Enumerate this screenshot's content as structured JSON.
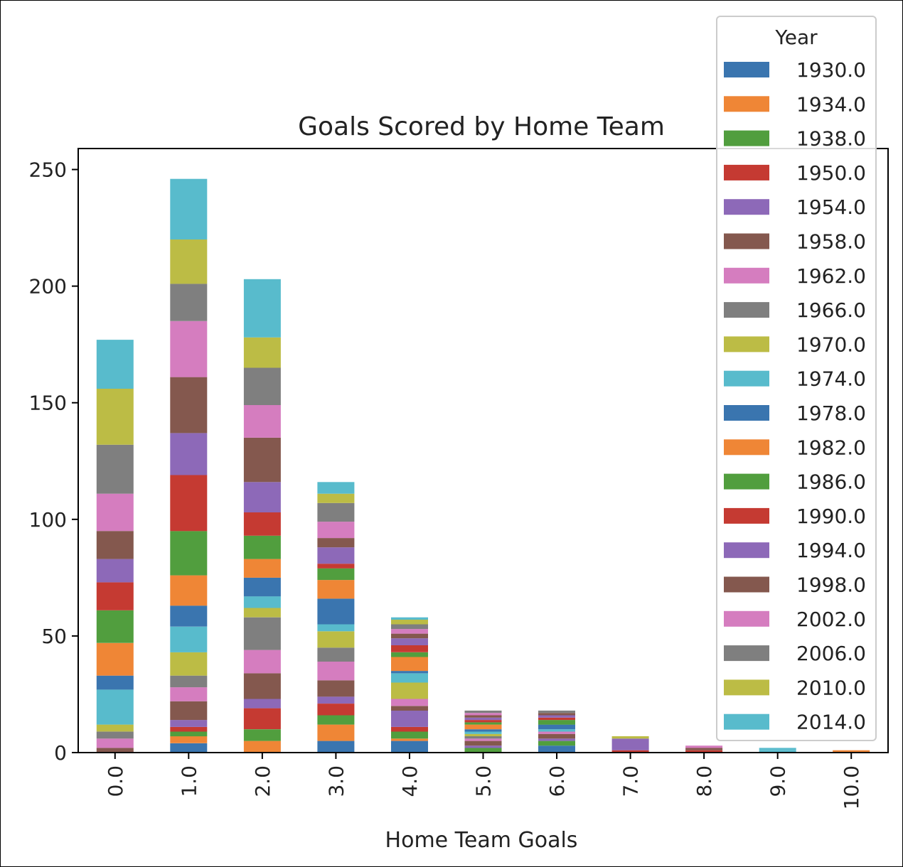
{
  "chart_data": {
    "type": "bar",
    "stacked": true,
    "title": "Goals Scored by Home Team",
    "xlabel": "Home Team Goals",
    "ylabel": "",
    "ylim": [
      0,
      259
    ],
    "yticks": [
      0,
      50,
      100,
      150,
      200,
      250
    ],
    "categories": [
      "0.0",
      "1.0",
      "2.0",
      "3.0",
      "4.0",
      "5.0",
      "6.0",
      "7.0",
      "8.0",
      "9.0",
      "10.0"
    ],
    "legend": {
      "title": "Year",
      "placement": "top-right"
    },
    "series": [
      {
        "name": "1930.0",
        "color": "#3a75af",
        "values": [
          0,
          4,
          0,
          5,
          5,
          0,
          3,
          0,
          0,
          0,
          0
        ]
      },
      {
        "name": "1934.0",
        "color": "#ef8636",
        "values": [
          0,
          3,
          5,
          7,
          1,
          0,
          0,
          0,
          0,
          0,
          1
        ]
      },
      {
        "name": "1938.0",
        "color": "#519e3e",
        "values": [
          0,
          2,
          5,
          4,
          3,
          2,
          2,
          0,
          0,
          0,
          0
        ]
      },
      {
        "name": "1950.0",
        "color": "#c53a32",
        "values": [
          0,
          2,
          9,
          5,
          2,
          0,
          0,
          1,
          1,
          0,
          0
        ]
      },
      {
        "name": "1954.0",
        "color": "#8d69b8",
        "values": [
          0,
          3,
          4,
          3,
          7,
          1,
          1,
          5,
          0,
          0,
          0
        ]
      },
      {
        "name": "1958.0",
        "color": "#84584e",
        "values": [
          2,
          8,
          11,
          7,
          2,
          2,
          2,
          0,
          1,
          0,
          0
        ]
      },
      {
        "name": "1962.0",
        "color": "#d57dbf",
        "values": [
          4,
          6,
          10,
          8,
          3,
          1,
          1,
          0,
          1,
          0,
          0
        ]
      },
      {
        "name": "1966.0",
        "color": "#7f7f7f",
        "values": [
          3,
          5,
          14,
          6,
          0,
          1,
          0,
          0,
          0,
          0,
          0
        ]
      },
      {
        "name": "1970.0",
        "color": "#bcbc45",
        "values": [
          3,
          10,
          4,
          7,
          7,
          1,
          0,
          0,
          0,
          0,
          0
        ]
      },
      {
        "name": "1974.0",
        "color": "#58bbcc",
        "values": [
          15,
          11,
          5,
          3,
          4,
          1,
          1,
          0,
          0,
          1,
          0
        ]
      },
      {
        "name": "1978.0",
        "color": "#3a75af",
        "values": [
          6,
          9,
          8,
          11,
          1,
          1,
          2,
          0,
          0,
          0,
          0
        ]
      },
      {
        "name": "1982.0",
        "color": "#ef8636",
        "values": [
          14,
          13,
          8,
          8,
          6,
          2,
          0,
          0,
          0,
          0,
          0
        ]
      },
      {
        "name": "1986.0",
        "color": "#519e3e",
        "values": [
          14,
          19,
          10,
          5,
          2,
          1,
          2,
          0,
          0,
          0,
          0
        ]
      },
      {
        "name": "1990.0",
        "color": "#c53a32",
        "values": [
          12,
          24,
          10,
          2,
          3,
          1,
          1,
          0,
          0,
          0,
          0
        ]
      },
      {
        "name": "1994.0",
        "color": "#8d69b8",
        "values": [
          10,
          18,
          13,
          7,
          3,
          1,
          1,
          0,
          0,
          0,
          0
        ]
      },
      {
        "name": "1998.0",
        "color": "#84584e",
        "values": [
          12,
          24,
          19,
          4,
          2,
          1,
          1,
          0,
          0,
          0,
          0
        ]
      },
      {
        "name": "2002.0",
        "color": "#d57dbf",
        "values": [
          16,
          24,
          14,
          7,
          2,
          1,
          0,
          0,
          0,
          0,
          0
        ]
      },
      {
        "name": "2006.0",
        "color": "#7f7f7f",
        "values": [
          21,
          16,
          16,
          8,
          2,
          1,
          1,
          0,
          0,
          0,
          0
        ]
      },
      {
        "name": "2010.0",
        "color": "#bcbc45",
        "values": [
          24,
          19,
          13,
          4,
          2,
          0,
          0,
          1,
          0,
          0,
          0
        ]
      },
      {
        "name": "2014.0",
        "color": "#58bbcc",
        "values": [
          21,
          26,
          25,
          5,
          1,
          0,
          0,
          0,
          0,
          1,
          0
        ]
      }
    ]
  }
}
